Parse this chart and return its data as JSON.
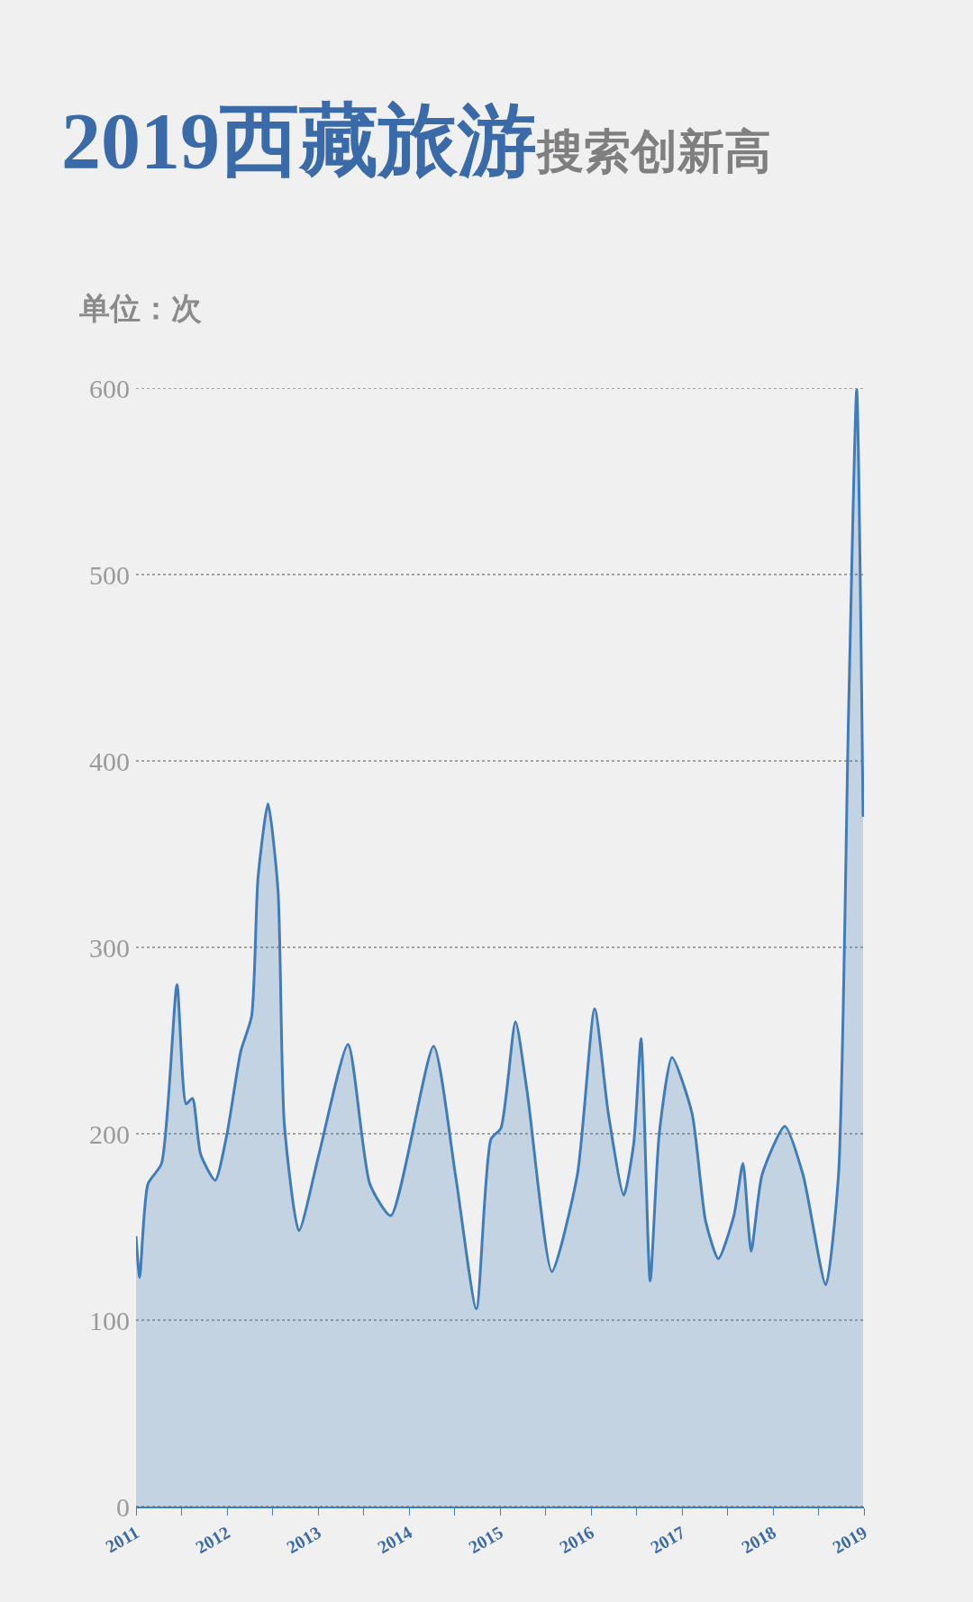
{
  "chart_data": {
    "type": "area",
    "title": "2019西藏旅游",
    "subtitle": "搜索创新高",
    "ylabel": "单位：次",
    "color": "#3f7cb8",
    "x": [
      2011.0,
      2011.04,
      2011.13,
      2011.28,
      2011.45,
      2011.55,
      2011.62,
      2011.71,
      2011.87,
      2012.0,
      2012.15,
      2012.27,
      2012.34,
      2012.45,
      2012.56,
      2012.63,
      2012.79,
      2013.01,
      2013.33,
      2013.57,
      2013.8,
      2014.27,
      2014.51,
      2014.74,
      2014.9,
      2015.01,
      2015.17,
      2015.3,
      2015.57,
      2015.85,
      2016.04,
      2016.19,
      2016.36,
      2016.47,
      2016.55,
      2016.65,
      2016.75,
      2016.89,
      2017.11,
      2017.26,
      2017.4,
      2017.57,
      2017.67,
      2017.76,
      2017.88,
      2018.13,
      2018.33,
      2018.58,
      2018.72,
      2018.83,
      2018.92,
      2018.99
    ],
    "values": [
      145,
      123,
      173,
      184,
      280,
      216,
      219,
      189,
      175,
      200,
      244,
      263,
      337,
      377,
      331,
      205,
      148,
      189,
      248,
      173,
      156,
      247,
      178,
      106,
      197,
      203,
      260,
      222,
      126,
      178,
      267,
      211,
      167,
      195,
      251,
      121,
      200,
      241,
      211,
      153,
      133,
      156,
      184,
      137,
      178,
      204,
      178,
      119,
      178,
      425,
      599,
      370
    ],
    "xlim": [
      2011,
      2019
    ],
    "xticks": [
      2011,
      {
        "value": 2011.5,
        "label": null
      },
      2012,
      {
        "value": 2012.5,
        "label": null
      },
      2013,
      {
        "value": 2013.5,
        "label": null
      },
      2014,
      {
        "value": 2014.5,
        "label": null
      },
      2015,
      {
        "value": 2015.5,
        "label": null
      },
      2016,
      {
        "value": 2016.5,
        "label": null
      },
      2017,
      {
        "value": 2017.5,
        "label": null
      },
      2018,
      {
        "value": 2018.5,
        "label": null
      },
      2019
    ],
    "ylim": [
      0,
      600
    ],
    "yticks": [
      0,
      100,
      200,
      300,
      400,
      500,
      600
    ],
    "grid": "y"
  }
}
